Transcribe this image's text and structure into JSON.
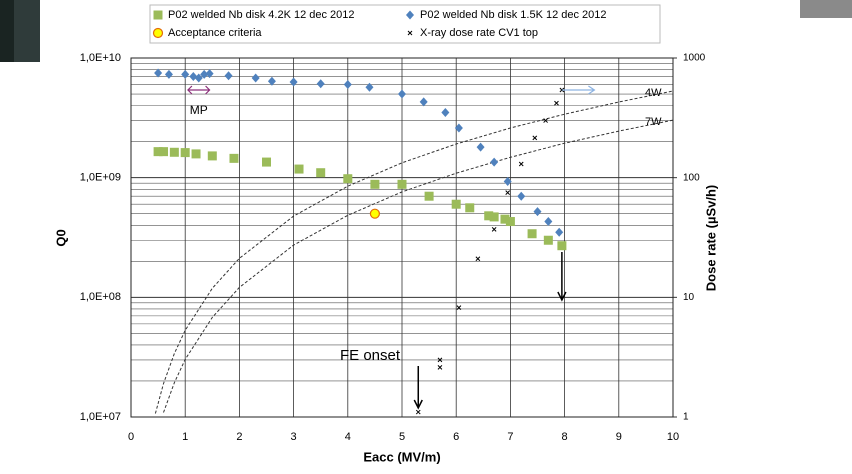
{
  "chart_data": {
    "type": "scatter",
    "x_label": "Eacc (MV/m)",
    "y_label": "Q0",
    "y2_label": "Dose rate (µSv/h)",
    "xlim": [
      0,
      10
    ],
    "xticks": [
      0,
      1,
      2,
      3,
      4,
      5,
      6,
      7,
      8,
      9,
      10
    ],
    "ylim": [
      10000000,
      10000000000
    ],
    "yscale": "log",
    "yticks": [
      {
        "value": 10000000,
        "label": "1,0E+07"
      },
      {
        "value": 100000000,
        "label": "1,0E+08"
      },
      {
        "value": 1000000000,
        "label": "1,0E+09"
      },
      {
        "value": 10000000000,
        "label": "1,0E+10"
      }
    ],
    "y2lim": [
      1,
      1000
    ],
    "y2scale": "log",
    "y2ticks": [
      1,
      10,
      100,
      1000
    ],
    "grid": true,
    "minor_grid": true,
    "legend": "top",
    "series": [
      {
        "name": "P02 welded Nb disk 4.2K 12 dec 2012",
        "color": "#9bbb59",
        "marker": "square",
        "x": [
          0.5,
          0.6,
          0.8,
          1.0,
          1.2,
          1.5,
          1.9,
          2.5,
          3.1,
          3.5,
          4.0,
          4.5,
          5.0,
          5.5,
          6.0,
          6.25,
          6.6,
          6.7,
          6.9,
          7.0,
          7.4,
          7.7,
          7.95
        ],
        "values": [
          1650000000,
          1650000000,
          1630000000,
          1620000000,
          1580000000,
          1520000000,
          1450000000,
          1350000000,
          1180000000,
          1100000000,
          980000000,
          880000000,
          880000000,
          700000000,
          600000000,
          560000000,
          480000000,
          470000000,
          450000000,
          430000000,
          340000000,
          300000000,
          270000000
        ]
      },
      {
        "name": "P02 welded Nb disk 1.5K 12 dec 2012",
        "color": "#4f81bd",
        "marker": "diamond",
        "x": [
          0.5,
          0.7,
          1.0,
          1.15,
          1.25,
          1.35,
          1.45,
          1.8,
          2.3,
          2.6,
          3.0,
          3.5,
          4.0,
          4.4,
          5.0,
          5.4,
          5.8,
          6.05,
          6.45,
          6.7,
          6.95,
          7.2,
          7.5,
          7.7,
          7.9
        ],
        "values": [
          7500000000,
          7300000000,
          7300000000,
          7000000000,
          6800000000,
          7300000000,
          7400000000,
          7100000000,
          6800000000,
          6400000000,
          6300000000,
          6100000000,
          6000000000,
          5700000000,
          5000000000,
          4300000000,
          3500000000,
          2600000000,
          1800000000,
          1350000000,
          930000000,
          700000000,
          520000000,
          430000000,
          350000000
        ]
      },
      {
        "name": "Acceptance criteria",
        "color": "#ffff00",
        "marker": "circle",
        "x": [
          4.5
        ],
        "values": [
          500000000
        ]
      },
      {
        "name": "X-ray dose rate CV1 top",
        "color": "#000000",
        "marker": "x",
        "axis": "y2",
        "x": [
          5.3,
          5.7,
          5.7,
          6.05,
          6.4,
          6.7,
          6.95,
          7.2,
          7.45,
          7.65,
          7.85,
          7.95
        ],
        "values": [
          1.1,
          3.0,
          2.6,
          8.2,
          21,
          37,
          75,
          130,
          215,
          300,
          420,
          540
        ]
      }
    ],
    "curves": [
      {
        "label": "4W",
        "x": [
          0.45,
          0.6,
          0.8,
          1,
          1.5,
          2,
          3,
          4,
          5,
          6,
          7,
          8,
          9,
          10
        ],
        "values": [
          10700000,
          19000000,
          34000000,
          53000000,
          119000000,
          212000000,
          477000000,
          848000000,
          1330000000,
          1910000000,
          2600000000,
          3390000000,
          4290000000,
          5300000000
        ]
      },
      {
        "label": "7W",
        "x": [
          0.6,
          0.8,
          1,
          1.5,
          2,
          3,
          4,
          5,
          6,
          7,
          8,
          9,
          10
        ],
        "values": [
          10900000,
          19400000,
          30300000,
          68000000,
          121000000,
          273000000,
          485000000,
          760000000,
          1090000000,
          1480000000,
          1940000000,
          2450000000,
          3030000000
        ]
      }
    ],
    "annotations": [
      "MP",
      "FE onset"
    ]
  }
}
